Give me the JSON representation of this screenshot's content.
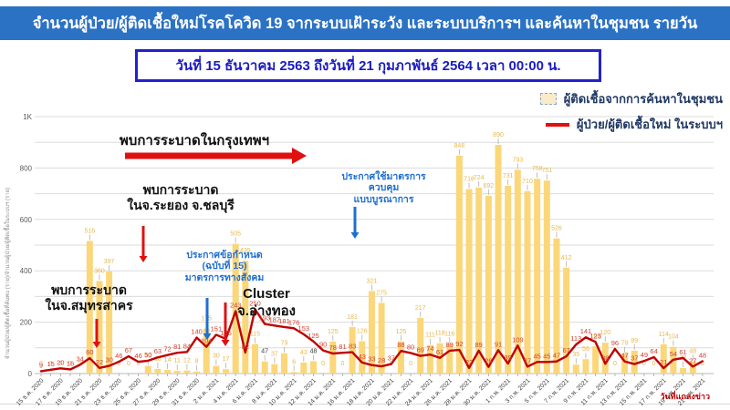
{
  "header": {
    "title": "จำนวนผู้ป่วย/ผู้ติดเชื้อใหม่โรคโควิด 19 จากระบบเฝ้าระวัง และระบบบริการฯ และค้นหาในชุมชน รายวัน"
  },
  "subtitle": "วันที่ 15 ธันวาคม 2563 ถึงวันที่ 21 กุมภาพันธ์ 2564 เวลา 00:00 น.",
  "legend": {
    "community": "ผู้ติดเชื้อจากการค้นหาในชุมชน",
    "system": "ผู้ป่วย/ผู้ติดเชื้อใหม่ ในระบบฯ"
  },
  "annotations": {
    "bangkok": "พบการระบาดในกรุงเทพฯ",
    "rayong": "พบการระบาด\nในจ.ระยอง จ.ชลบุรี",
    "samutsakhon": "พบการระบาด\nในจ.สมุทรสาคร",
    "decree": "ประกาศข้อกำหนด\n(ฉบับที่ 15)\nมาตรการทางสังคม",
    "cluster": "Cluster\nจ.อ่างทอง",
    "integrated": "ประกาศใช้มาตรการควบคุม\nแบบบูรณาการ",
    "press_date": "วันที่แถลงข่าว"
  },
  "colors": {
    "header_bg": "#2B72C4",
    "subtitle_blue": "#1B1BC0",
    "legend_text": "#1F3864",
    "bar": "#FBD77A",
    "bar_label": "#E8B84D",
    "bar_label_dark": "#3A3A3A",
    "line": "#C00000",
    "line_label": "#D2422F",
    "grid": "#DBDBDB",
    "axis_text": "#595959",
    "annotation_blue": "#1F6FD0",
    "annotation_red": "#E01010"
  },
  "chart_data": {
    "type": "bar+line",
    "title": "จำนวนผู้ป่วย/ผู้ติดเชื้อใหม่โรคโควิด 19 จากระบบเฝ้าระวัง และระบบบริการฯ และค้นหาในชุมชน รายวัน",
    "xlabel": "",
    "ylabel": "จำนวนผู้ป่วย/ผู้ติดเชื้อที่ค้นพบ (ราย)/จำนวนผู้ป่วย/ผู้ติดเชื้อในระบบฯ (ราย)",
    "ylim": [
      0,
      1000
    ],
    "grid": true,
    "legend_position": "top-right",
    "ytick_values": [
      0,
      200,
      400,
      600,
      800,
      1000
    ],
    "ytick_labels": [
      "0",
      "200",
      "400",
      "600",
      "800",
      "1K"
    ],
    "x_label_every": 2,
    "x": [
      "15 ธ.ค. 2020",
      "16 ธ.ค. 2020",
      "17 ธ.ค. 2020",
      "18 ธ.ค. 2020",
      "19 ธ.ค. 2020",
      "20 ธ.ค. 2020",
      "21 ธ.ค. 2020",
      "22 ธ.ค. 2020",
      "23 ธ.ค. 2020",
      "24 ธ.ค. 2020",
      "25 ธ.ค. 2020",
      "26 ธ.ค. 2020",
      "27 ธ.ค. 2020",
      "28 ธ.ค. 2020",
      "29 ธ.ค. 2020",
      "30 ธ.ค. 2020",
      "31 ธ.ค. 2020",
      "1 ม.ค. 2021",
      "2 ม.ค. 2021",
      "3 ม.ค. 2021",
      "4 ม.ค. 2021",
      "5 ม.ค. 2021",
      "6 ม.ค. 2021",
      "7 ม.ค. 2021",
      "8 ม.ค. 2021",
      "9 ม.ค. 2021",
      "10 ม.ค. 2021",
      "11 ม.ค. 2021",
      "12 ม.ค. 2021",
      "13 ม.ค. 2021",
      "14 ม.ค. 2021",
      "15 ม.ค. 2021",
      "16 ม.ค. 2021",
      "17 ม.ค. 2021",
      "18 ม.ค. 2021",
      "19 ม.ค. 2021",
      "20 ม.ค. 2021",
      "21 ม.ค. 2021",
      "22 ม.ค. 2021",
      "23 ม.ค. 2021",
      "24 ม.ค. 2021",
      "25 ม.ค. 2021",
      "26 ม.ค. 2021",
      "27 ม.ค. 2021",
      "28 ม.ค. 2021",
      "29 ม.ค. 2021",
      "30 ม.ค. 2021",
      "31 ม.ค. 2021",
      "1 ก.พ. 2021",
      "2 ก.พ. 2021",
      "3 ก.พ. 2021",
      "4 ก.พ. 2021",
      "5 ก.พ. 2021",
      "6 ก.พ. 2021",
      "7 ก.พ. 2021",
      "8 ก.พ. 2021",
      "9 ก.พ. 2021",
      "10 ก.พ. 2021",
      "11 ก.พ. 2021",
      "12 ก.พ. 2021",
      "13 ก.พ. 2021",
      "14 ก.พ. 2021",
      "15 ก.พ. 2021",
      "16 ก.พ. 2021",
      "17 ก.พ. 2021",
      "18 ก.พ. 2021",
      "19 ก.พ. 2021",
      "20 ก.พ. 2021",
      "21 ก.พ. 2021"
    ],
    "series": [
      {
        "name": "ผู้ติดเชื้อจากการค้นหาในชุมชน",
        "type": "bar",
        "color": "#FBD77A",
        "values": [
          0,
          0,
          0,
          0,
          0,
          516,
          360,
          397,
          0,
          0,
          0,
          30,
          18,
          14,
          11,
          12,
          8,
          175,
          30,
          17,
          505,
          439,
          115,
          47,
          37,
          79,
          6,
          43,
          48,
          0,
          125,
          0,
          181,
          126,
          321,
          275,
          0,
          125,
          0,
          217,
          111,
          118,
          116,
          848,
          718,
          724,
          692,
          890,
          731,
          793,
          710,
          758,
          751,
          526,
          412,
          35,
          56,
          106,
          120,
          0,
          79,
          89,
          0,
          0,
          114,
          104,
          22,
          48,
          0
        ],
        "dark_label_indices": [
          23,
          28
        ]
      },
      {
        "name": "ผู้ป่วย/ผู้ติดเชื้อใหม่ ในระบบฯ",
        "type": "line",
        "color": "#C00000",
        "values": [
          9,
          15,
          20,
          16,
          34,
          60,
          22,
          30,
          46,
          67,
          46,
          50,
          63,
          72,
          81,
          84,
          140,
          104,
          151,
          135,
          243,
          82,
          250,
          193,
          187,
          181,
          176,
          153,
          125,
          90,
          78,
          81,
          83,
          43,
          33,
          28,
          37,
          88,
          80,
          69,
          74,
          61,
          89,
          92,
          22,
          89,
          26,
          91,
          39,
          109,
          27,
          45,
          45,
          47,
          67,
          113,
          141,
          123,
          38,
          96,
          47,
          37,
          49,
          64,
          21,
          54,
          61,
          27,
          48
        ]
      }
    ]
  }
}
